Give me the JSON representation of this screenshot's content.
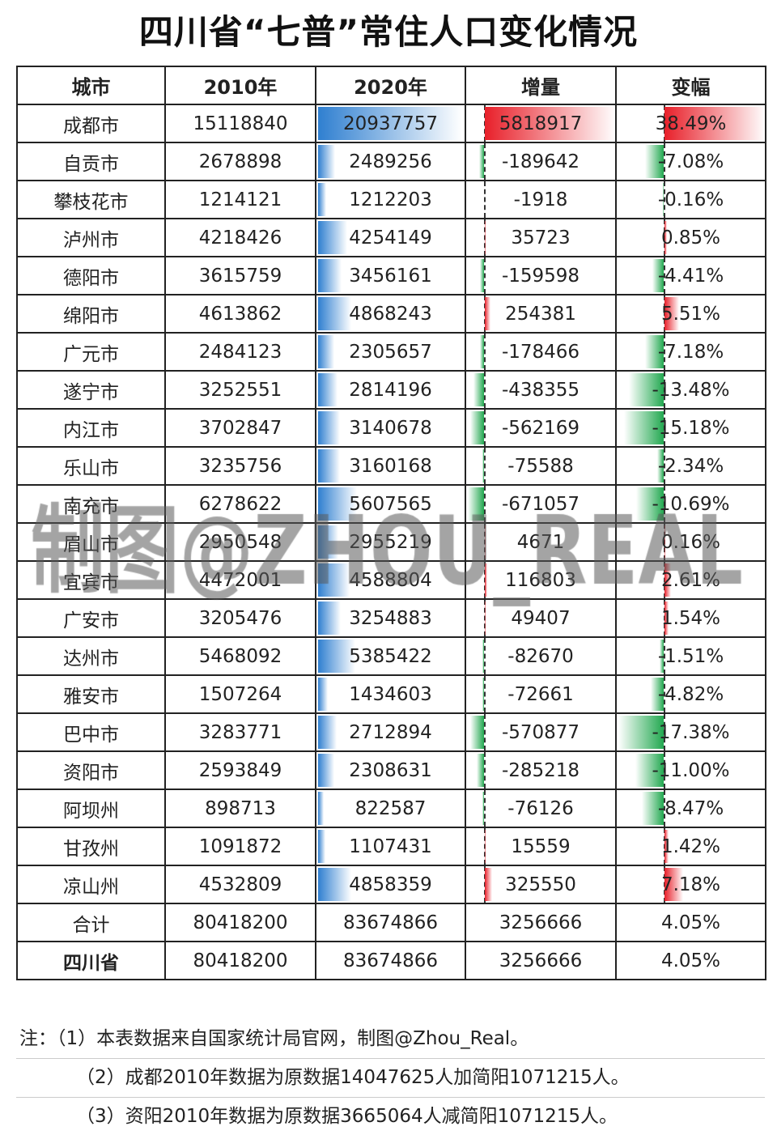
{
  "title": "四川省“七普”常住人口变化情况",
  "columns": [
    "城市",
    "2010年",
    "2020年",
    "增量",
    "变幅"
  ],
  "rows": [
    [
      "成都市",
      "15118840",
      "20937757",
      "5818917",
      "38.49%"
    ],
    [
      "自贡市",
      "2678898",
      "2489256",
      "-189642",
      "-7.08%"
    ],
    [
      "攀枝花市",
      "1214121",
      "1212203",
      "-1918",
      "-0.16%"
    ],
    [
      "泸州市",
      "4218426",
      "4254149",
      "35723",
      "0.85%"
    ],
    [
      "德阳市",
      "3615759",
      "3456161",
      "-159598",
      "-4.41%"
    ],
    [
      "绵阳市",
      "4613862",
      "4868243",
      "254381",
      "5.51%"
    ],
    [
      "广元市",
      "2484123",
      "2305657",
      "-178466",
      "-7.18%"
    ],
    [
      "遂宁市",
      "3252551",
      "2814196",
      "-438355",
      "-13.48%"
    ],
    [
      "内江市",
      "3702847",
      "3140678",
      "-562169",
      "-15.18%"
    ],
    [
      "乐山市",
      "3235756",
      "3160168",
      "-75588",
      "-2.34%"
    ],
    [
      "南充市",
      "6278622",
      "5607565",
      "-671057",
      "-10.69%"
    ],
    [
      "眉山市",
      "2950548",
      "2955219",
      "4671",
      "0.16%"
    ],
    [
      "宜宾市",
      "4472001",
      "4588804",
      "116803",
      "2.61%"
    ],
    [
      "广安市",
      "3205476",
      "3254883",
      "49407",
      "1.54%"
    ],
    [
      "达州市",
      "5468092",
      "5385422",
      "-82670",
      "-1.51%"
    ],
    [
      "雅安市",
      "1507264",
      "1434603",
      "-72661",
      "-4.82%"
    ],
    [
      "巴中市",
      "3283771",
      "2712894",
      "-570877",
      "-17.38%"
    ],
    [
      "资阳市",
      "2593849",
      "2308631",
      "-285218",
      "-11.00%"
    ],
    [
      "阿坝州",
      "898713",
      "822587",
      "-76126",
      "-8.47%"
    ],
    [
      "甘孜州",
      "1091872",
      "1107431",
      "15559",
      "1.42%"
    ],
    [
      "凉山州",
      "4532809",
      "4858359",
      "325550",
      "7.18%"
    ]
  ],
  "totals": [
    [
      "合计",
      "80418200",
      "83674866",
      "3256666",
      "4.05%"
    ],
    [
      "四川省",
      "80418200",
      "83674866",
      "3256666",
      "4.05%"
    ]
  ],
  "notes": [
    "注：（1）本表数据来自国家统计局官网，制图@Zhou_Real。",
    "（2）成都2010年数据为原数据14047625人加简阳1071215人。",
    "（3）资阳2010年数据为原数据3665064人减简阳1071215人。"
  ],
  "watermark": "制图@ZHOU_REAL",
  "colors": {
    "bar_2020": "#2f7fd0",
    "positive": "#e8202a",
    "negative": "#22a850"
  }
}
